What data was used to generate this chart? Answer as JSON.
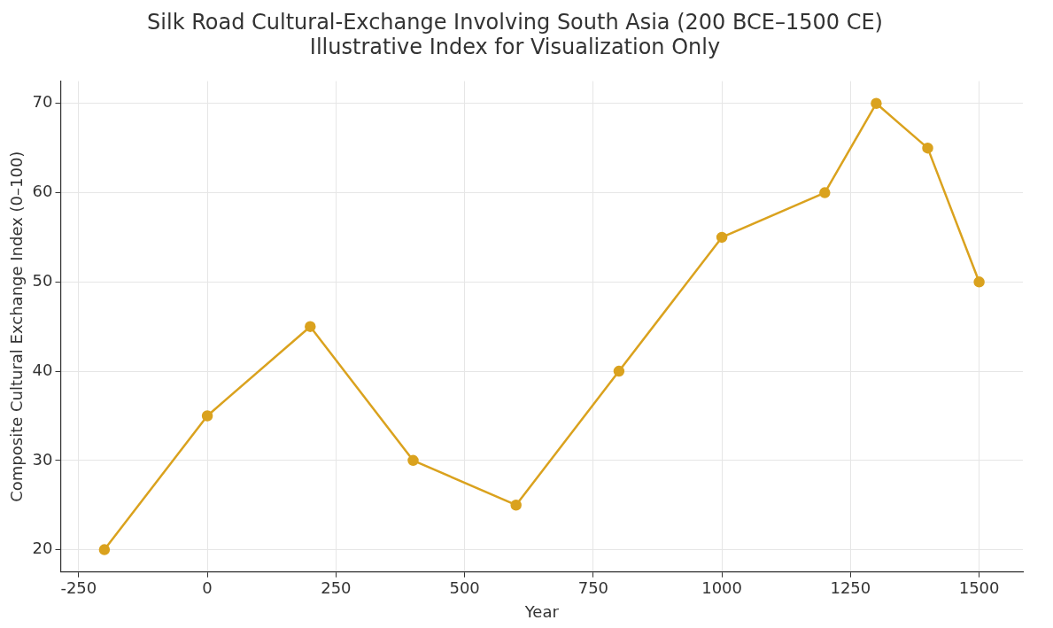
{
  "chart_data": {
    "type": "line",
    "title": "Silk Road Cultural-Exchange Involving South Asia (200 BCE–1500 CE)",
    "subtitle": "Illustrative Index for Visualization Only",
    "xlabel": "Year",
    "ylabel": "Composite Cultural Exchange Index (0–100)",
    "x": [
      -200,
      0,
      200,
      400,
      600,
      800,
      1000,
      1200,
      1300,
      1400,
      1500
    ],
    "series": [
      {
        "color": "#daa21e",
        "values": [
          20,
          35,
          45,
          30,
          25,
          40,
          55,
          60,
          70,
          65,
          50
        ]
      }
    ],
    "xlim": [
      -285,
      1585
    ],
    "xticks": [
      -250,
      0,
      250,
      500,
      750,
      1000,
      1250,
      1500
    ],
    "ylim": [
      17.5,
      72.5
    ],
    "yticks": [
      20,
      30,
      40,
      50,
      60,
      70
    ],
    "grid": true,
    "marker": "circle",
    "line_style": "solid"
  }
}
